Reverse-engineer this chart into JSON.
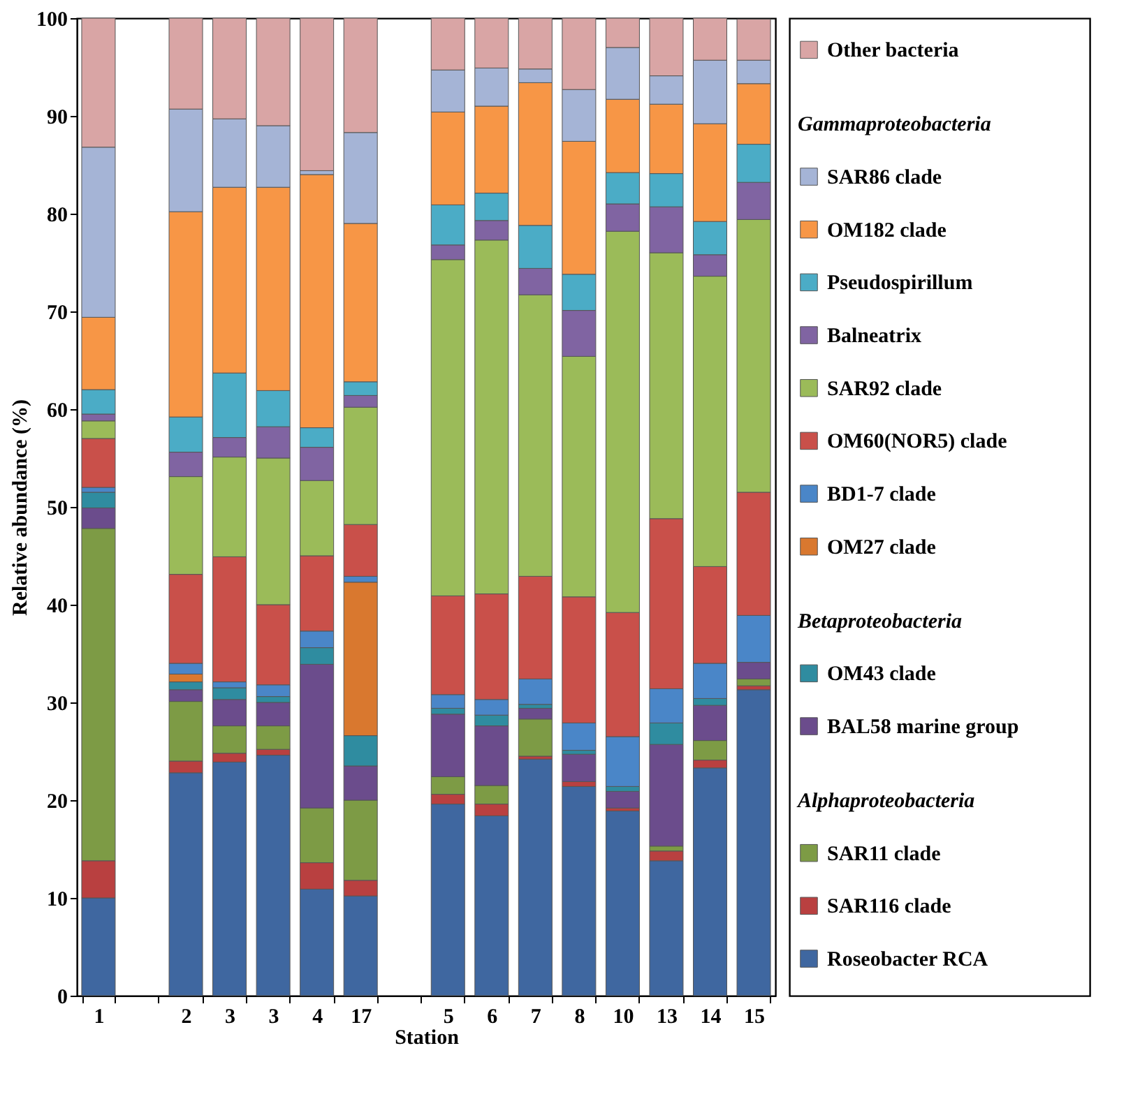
{
  "chart_data": {
    "type": "bar",
    "stacked": true,
    "xlabel": "Station",
    "ylabel": "Relative abundance (%)",
    "categories": [
      "1",
      null,
      "2",
      "3",
      "3",
      "4",
      "17",
      null,
      "5",
      "6",
      "7",
      "8",
      "10",
      "13",
      "14",
      "15"
    ],
    "ylim": [
      0,
      100
    ],
    "yticks": [
      0,
      10,
      20,
      30,
      40,
      50,
      60,
      70,
      80,
      90,
      100
    ],
    "legend": "right",
    "grid": false,
    "annotations": [
      "Gammaproteobacteria",
      "Betaproteobacteria",
      "Alphaproteobacteria"
    ],
    "series": [
      {
        "name": "Roseobacter RCA",
        "color": "#3f67a0",
        "values": [
          10,
          null,
          22.8,
          23.9,
          24.6,
          10.9,
          10.2,
          null,
          19.6,
          18.4,
          24.2,
          21.4,
          18.9,
          13.8,
          23.3,
          31.3
        ]
      },
      {
        "name": "SAR116 clade",
        "color": "#b94040",
        "values": [
          3.8,
          null,
          1.2,
          0.9,
          0.6,
          2.7,
          1.6,
          null,
          1,
          1.2,
          0.3,
          0.5,
          0.3,
          1,
          0.8,
          0.4
        ]
      },
      {
        "name": "SAR11 clade",
        "color": "#7d9b45",
        "values": [
          34,
          null,
          6.1,
          2.8,
          2.4,
          5.6,
          8.2,
          null,
          1.8,
          1.9,
          3.8,
          0,
          0,
          0.5,
          2,
          0.7
        ]
      },
      {
        "name": "BAL58 marine group",
        "color": "#6b4c8c",
        "values": [
          2.1,
          null,
          1.2,
          2.7,
          2.4,
          14.7,
          3.5,
          null,
          6.4,
          6.1,
          1.1,
          2.8,
          1.7,
          10.4,
          3.6,
          1.7
        ]
      },
      {
        "name": "OM43 clade",
        "color": "#2f8ca0",
        "values": [
          1.6,
          null,
          0.8,
          1.2,
          0.6,
          1.7,
          3.1,
          null,
          0.6,
          1.1,
          0.4,
          0.4,
          0.5,
          2.2,
          0.7,
          null
        ]
      },
      {
        "name": "OM27 clade",
        "color": "#d9782f",
        "values": [
          0,
          null,
          0.8,
          0,
          0,
          0,
          15.7,
          null,
          0,
          0,
          0,
          0,
          0,
          0,
          0,
          0
        ]
      },
      {
        "name": "BD1-7 clade",
        "color": "#4a86c8",
        "values": [
          0.5,
          null,
          1.1,
          0.6,
          1.2,
          1.7,
          0.6,
          null,
          1.4,
          1.6,
          2.6,
          2.8,
          5.1,
          3.5,
          3.6,
          4.8
        ]
      },
      {
        "name": "OM60(NOR5) clade",
        "color": "#c9504a",
        "values": [
          5,
          null,
          9.1,
          12.8,
          8.2,
          7.7,
          5.3,
          null,
          10.1,
          10.8,
          10.5,
          12.9,
          12.7,
          17.4,
          9.9,
          12.6
        ]
      },
      {
        "name": "SAR92 clade",
        "color": "#9bbb59",
        "values": [
          1.8,
          null,
          10,
          10.2,
          15,
          7.7,
          12,
          null,
          34.4,
          36.2,
          28.8,
          24.6,
          39,
          27.2,
          29.7,
          27.9
        ]
      },
      {
        "name": "Balneatrix",
        "color": "#8064a2",
        "values": [
          0.7,
          null,
          2.5,
          2,
          3.2,
          3.4,
          1.2,
          null,
          1.5,
          2,
          2.7,
          4.7,
          2.8,
          4.7,
          2.2,
          3.8
        ]
      },
      {
        "name": "Pseudospirillum",
        "color": "#4bacc6",
        "values": [
          2.5,
          null,
          3.6,
          6.6,
          3.7,
          2,
          1.4,
          null,
          4.1,
          2.8,
          4.4,
          3.7,
          3.2,
          3.4,
          3.4,
          3.9
        ]
      },
      {
        "name": "OM182 clade",
        "color": "#f79646",
        "values": [
          7.4,
          null,
          21,
          19,
          20.8,
          25.9,
          16.2,
          null,
          9.5,
          8.9,
          14.6,
          13.6,
          7.5,
          7.1,
          10,
          6.2
        ]
      },
      {
        "name": "SAR86 clade",
        "color": "#a5b4d6",
        "values": [
          17.4,
          null,
          10.5,
          7,
          6.3,
          0.4,
          9.3,
          null,
          4.3,
          3.9,
          1.4,
          5.3,
          5.3,
          2.9,
          6.5,
          2.4
        ]
      },
      {
        "name": "Other bacteria",
        "color": "#d9a5a5",
        "values": [
          13.2,
          null,
          9.3,
          10.3,
          11,
          15.6,
          11.7,
          null,
          5.3,
          5.1,
          5.2,
          7.3,
          3,
          5.9,
          4.3,
          4.2
        ]
      }
    ]
  }
}
